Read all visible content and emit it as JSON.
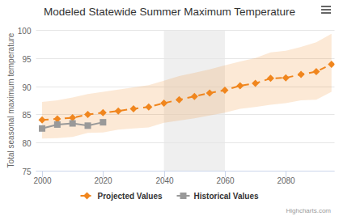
{
  "chart_data": {
    "type": "line",
    "title": "Modeled Statewide Summer Maximum Temperature",
    "y_label": "Total seasonal maximum temperature",
    "credits": "Highcharts.com",
    "x": [
      2000,
      2005,
      2010,
      2015,
      2020,
      2025,
      2030,
      2035,
      2040,
      2045,
      2050,
      2055,
      2060,
      2065,
      2070,
      2075,
      2080,
      2085,
      2090,
      2095
    ],
    "series": [
      {
        "name": "Projected Values",
        "color": "#f0861e",
        "marker": "diamond",
        "line_style": "dashed",
        "values": [
          84.0,
          84.2,
          84.4,
          85.0,
          85.3,
          85.6,
          86.0,
          86.3,
          87.0,
          87.6,
          88.2,
          88.8,
          89.3,
          90.1,
          90.5,
          91.4,
          91.5,
          92.1,
          92.6,
          93.9
        ],
        "low": [
          80.7,
          80.8,
          81.0,
          81.7,
          81.8,
          82.3,
          82.5,
          82.7,
          83.5,
          83.9,
          84.3,
          84.8,
          85.3,
          86.0,
          86.3,
          86.7,
          87.0,
          87.5,
          87.6,
          89.0
        ],
        "high": [
          87.2,
          87.5,
          88.0,
          88.6,
          89.0,
          89.4,
          89.8,
          90.2,
          91.0,
          91.8,
          92.4,
          93.0,
          93.7,
          94.4,
          95.0,
          96.0,
          96.3,
          97.0,
          97.8,
          99.3
        ]
      },
      {
        "name": "Historical Values",
        "color": "#999999",
        "marker": "square",
        "line_style": "solid",
        "values": [
          82.5,
          83.2,
          83.4,
          83.0,
          83.6,
          null,
          null,
          null,
          null,
          null,
          null,
          null,
          null,
          null,
          null,
          null,
          null,
          null,
          null,
          null
        ]
      }
    ],
    "x_band": [
      2040,
      2060
    ],
    "xlim": [
      1998,
      2096
    ],
    "xticks": [
      2000,
      2020,
      2040,
      2060,
      2080
    ],
    "ylim": [
      75,
      100
    ],
    "yticks": [
      75,
      80,
      85,
      90,
      95,
      100
    ],
    "grid": true,
    "legend": "bottom"
  }
}
